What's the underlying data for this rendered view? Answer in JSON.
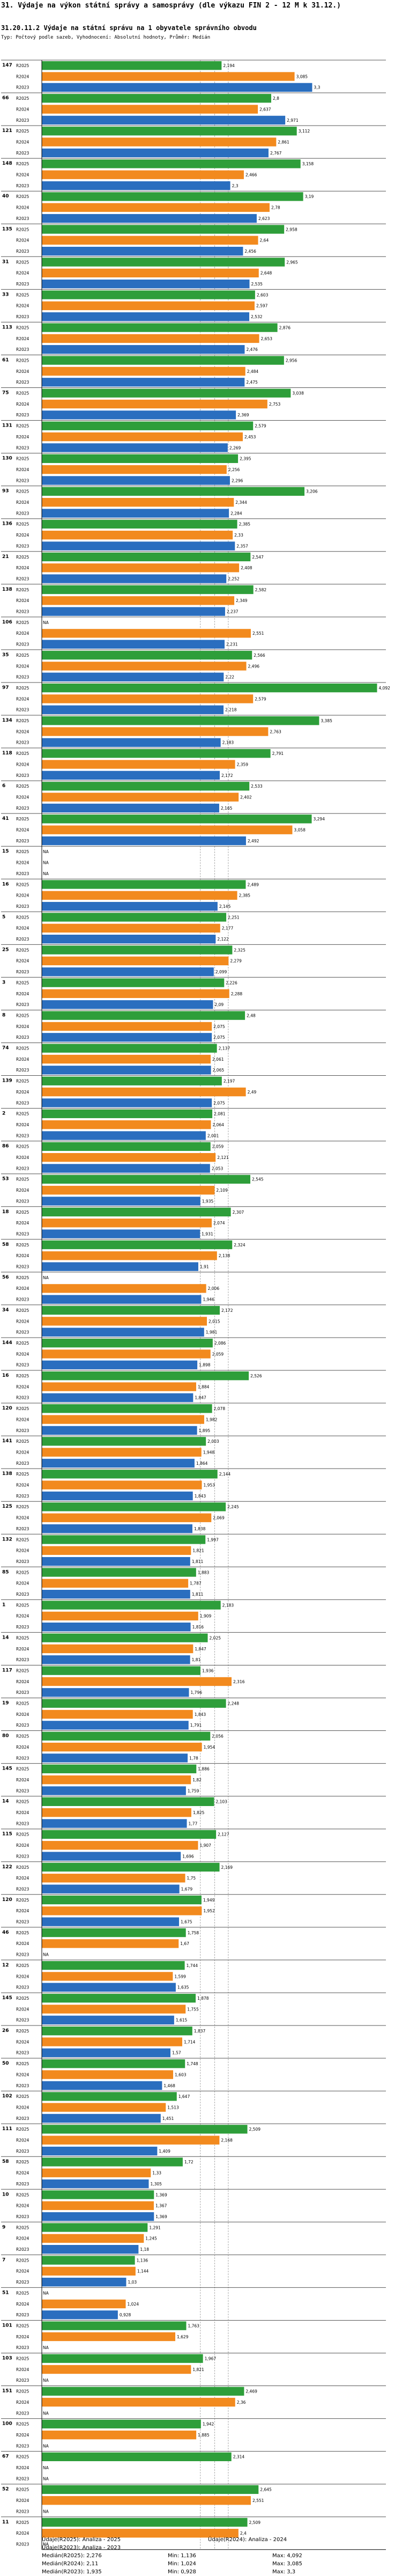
{
  "title": "31. Výdaje na výkon státní správy a samosprávy (dle výkazu FIN 2 - 12 M k 31.12.)",
  "subtitle": "31.20.11.2 Výdaje na státní správu na 1 obyvatele správního obvodu",
  "note": "Typ: Počtový podle sazeb, Vyhodnocení: Absolutní hodnoty, Průměr: Medián",
  "colors": {
    "R2025": "#2e9e3a",
    "R2024": "#f28a1e",
    "R2023": "#2a6ebf",
    "grid": "#aaaaaa"
  },
  "chart_data": {
    "type": "bar",
    "orientation": "horizontal",
    "title": "31.20.11.2 Výdaje na státní správu na 1 obyvatele správního obvodu",
    "series_names": [
      "R2025",
      "R2024",
      "R2023"
    ],
    "missing_label": "NA",
    "xlim": [
      0,
      4.2
    ],
    "reference_lines": [
      {
        "name": "Medián(R2025)",
        "value": 2.276
      },
      {
        "name": "Medián(R2024)",
        "value": 2.11
      },
      {
        "name": "Medián(R2023)",
        "value": 1.935
      }
    ],
    "groups": [
      {
        "id": "147",
        "values": [
          2.194,
          3.085,
          3.3
        ]
      },
      {
        "id": "66",
        "values": [
          2.8,
          2.637,
          2.971
        ]
      },
      {
        "id": "121",
        "values": [
          3.112,
          2.861,
          2.767
        ]
      },
      {
        "id": "148",
        "values": [
          3.158,
          2.466,
          2.3
        ]
      },
      {
        "id": "40",
        "values": [
          3.19,
          2.78,
          2.623
        ]
      },
      {
        "id": "135",
        "values": [
          2.958,
          2.64,
          2.456
        ]
      },
      {
        "id": "31",
        "values": [
          2.965,
          2.648,
          2.535
        ]
      },
      {
        "id": "33",
        "values": [
          2.603,
          2.597,
          2.532
        ]
      },
      {
        "id": "113",
        "values": [
          2.876,
          2.653,
          2.476
        ]
      },
      {
        "id": "61",
        "values": [
          2.956,
          2.484,
          2.475
        ]
      },
      {
        "id": "75",
        "values": [
          3.038,
          2.753,
          2.369
        ]
      },
      {
        "id": "131",
        "values": [
          2.579,
          2.453,
          2.269
        ]
      },
      {
        "id": "130",
        "values": [
          2.395,
          2.256,
          2.296
        ]
      },
      {
        "id": "93",
        "values": [
          3.206,
          2.344,
          2.284
        ]
      },
      {
        "id": "136",
        "values": [
          2.385,
          2.33,
          2.357
        ]
      },
      {
        "id": "21",
        "values": [
          2.547,
          2.408,
          2.252
        ]
      },
      {
        "id": "138",
        "values": [
          2.582,
          2.349,
          2.237
        ]
      },
      {
        "id": "106",
        "values": [
          null,
          2.551,
          2.231
        ]
      },
      {
        "id": "35",
        "values": [
          2.566,
          2.496,
          2.22
        ]
      },
      {
        "id": "97",
        "values": [
          4.092,
          2.579,
          2.218
        ]
      },
      {
        "id": "134",
        "values": [
          3.385,
          2.763,
          2.183
        ]
      },
      {
        "id": "118",
        "values": [
          2.791,
          2.359,
          2.172
        ]
      },
      {
        "id": "6",
        "values": [
          2.533,
          2.402,
          2.165
        ]
      },
      {
        "id": "41",
        "values": [
          3.294,
          3.058,
          2.492
        ]
      },
      {
        "id": "15",
        "values": [
          null,
          null,
          null
        ]
      },
      {
        "id": "16",
        "values": [
          2.489,
          2.385,
          2.145
        ]
      },
      {
        "id": "5",
        "values": [
          2.251,
          2.177,
          2.122
        ]
      },
      {
        "id": "25",
        "values": [
          2.325,
          2.279,
          2.099
        ]
      },
      {
        "id": "3",
        "values": [
          2.226,
          2.288,
          2.09
        ]
      },
      {
        "id": "8",
        "values": [
          2.48,
          2.075,
          2.075
        ]
      },
      {
        "id": "74",
        "values": [
          2.137,
          2.061,
          2.065
        ]
      },
      {
        "id": "139",
        "values": [
          2.197,
          2.49,
          2.075
        ]
      },
      {
        "id": "2",
        "values": [
          2.081,
          2.064,
          2.001
        ]
      },
      {
        "id": "86",
        "values": [
          2.059,
          2.121,
          2.053
        ]
      },
      {
        "id": "53",
        "values": [
          2.545,
          2.109,
          1.935
        ]
      },
      {
        "id": "18",
        "values": [
          2.307,
          2.074,
          1.931
        ]
      },
      {
        "id": "58",
        "values": [
          2.324,
          2.138,
          1.91
        ]
      },
      {
        "id": "56",
        "values": [
          null,
          2.006,
          1.946
        ]
      },
      {
        "id": "34",
        "values": [
          2.172,
          2.015,
          1.981
        ]
      },
      {
        "id": "144",
        "values": [
          2.086,
          2.059,
          1.898
        ]
      },
      {
        "id": "16",
        "values": [
          2.526,
          1.884,
          1.847
        ]
      },
      {
        "id": "120",
        "values": [
          2.078,
          1.982,
          1.895
        ]
      },
      {
        "id": "141",
        "values": [
          2.003,
          1.948,
          1.864
        ]
      },
      {
        "id": "138",
        "values": [
          2.144,
          1.953,
          1.843
        ]
      },
      {
        "id": "125",
        "values": [
          2.245,
          2.069,
          1.838
        ]
      },
      {
        "id": "132",
        "values": [
          1.997,
          1.821,
          1.811
        ]
      },
      {
        "id": "85",
        "values": [
          1.883,
          1.787,
          1.811
        ]
      },
      {
        "id": "1",
        "values": [
          2.183,
          1.909,
          1.816
        ]
      },
      {
        "id": "14",
        "values": [
          2.025,
          1.847,
          1.81
        ]
      },
      {
        "id": "117",
        "values": [
          1.936,
          2.316,
          1.796
        ]
      },
      {
        "id": "19",
        "values": [
          2.248,
          1.843,
          1.791
        ]
      },
      {
        "id": "80",
        "values": [
          2.056,
          1.954,
          1.78
        ]
      },
      {
        "id": "145",
        "values": [
          1.886,
          1.82,
          1.759
        ]
      },
      {
        "id": "14",
        "values": [
          2.103,
          1.825,
          1.77
        ]
      },
      {
        "id": "115",
        "values": [
          2.127,
          1.907,
          1.696
        ]
      },
      {
        "id": "122",
        "values": [
          2.169,
          1.75,
          1.679
        ]
      },
      {
        "id": "120",
        "values": [
          1.949,
          1.952,
          1.675
        ]
      },
      {
        "id": "46",
        "values": [
          1.758,
          1.67,
          null
        ]
      },
      {
        "id": "12",
        "values": [
          1.744,
          1.599,
          1.635
        ]
      },
      {
        "id": "145",
        "values": [
          1.878,
          1.755,
          1.615
        ]
      },
      {
        "id": "26",
        "values": [
          1.837,
          1.714,
          1.57
        ]
      },
      {
        "id": "50",
        "values": [
          1.748,
          1.603,
          1.468
        ]
      },
      {
        "id": "102",
        "values": [
          1.647,
          1.513,
          1.451
        ]
      },
      {
        "id": "111",
        "values": [
          2.509,
          2.168,
          1.409
        ]
      },
      {
        "id": "58",
        "values": [
          1.72,
          1.33,
          1.305
        ]
      },
      {
        "id": "10",
        "values": [
          1.369,
          1.367,
          1.369
        ]
      },
      {
        "id": "9",
        "values": [
          1.291,
          1.245,
          1.18
        ]
      },
      {
        "id": "7",
        "values": [
          1.136,
          1.144,
          1.03
        ]
      },
      {
        "id": "51",
        "values": [
          null,
          1.024,
          0.928
        ]
      },
      {
        "id": "101",
        "values": [
          1.763,
          1.629,
          null
        ]
      },
      {
        "id": "103",
        "values": [
          1.967,
          1.821,
          null
        ]
      },
      {
        "id": "151",
        "values": [
          2.469,
          2.36,
          null
        ]
      },
      {
        "id": "100",
        "values": [
          1.942,
          1.885,
          null
        ]
      },
      {
        "id": "67",
        "values": [
          2.314,
          null,
          null
        ]
      },
      {
        "id": "52",
        "values": [
          2.645,
          2.551,
          null
        ]
      },
      {
        "id": "11",
        "values": [
          2.509,
          2.4,
          null
        ]
      }
    ]
  },
  "legend": {
    "rows": [
      [
        "Údaje(R2025): Analiza - 2025",
        "",
        "Údaje(R2024): Analiza - 2024"
      ],
      [
        "Údaje(R2023): Analiza - 2023",
        "",
        ""
      ],
      [
        "Medián(R2025): 2,276",
        "Min: 1,136",
        "Max: 4,092"
      ],
      [
        "Medián(R2024): 2,11",
        "Min: 1,024",
        "Max: 3,085"
      ],
      [
        "Medián(R2023): 1,935",
        "Min: 0,928",
        "Max: 3,3"
      ]
    ]
  }
}
